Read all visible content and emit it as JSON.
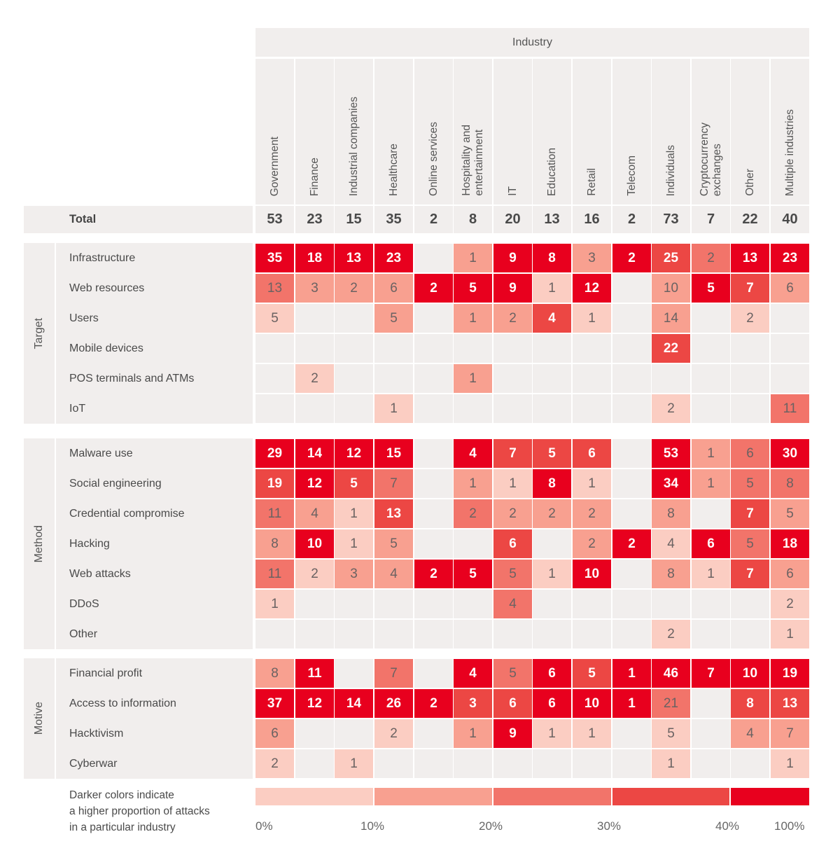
{
  "chart_data": {
    "type": "heatmap",
    "title": "Industry",
    "column_group_label": "Industry",
    "columns": [
      "Government",
      "Finance",
      "Industrial companies",
      "Healthcare",
      "Online services",
      "Hospitality and\nentertainment",
      "IT",
      "Education",
      "Retail",
      "Telecom",
      "Individuals",
      "Cryptocurrency\nexchanges",
      "Other",
      "Multiple industries"
    ],
    "totals_label": "Total",
    "totals": [
      53,
      23,
      15,
      35,
      2,
      8,
      20,
      13,
      16,
      2,
      73,
      7,
      22,
      40
    ],
    "groups": [
      {
        "name": "Target",
        "rows": [
          {
            "label": "Infrastructure",
            "values": [
              35,
              18,
              13,
              23,
              null,
              1,
              9,
              8,
              3,
              2,
              25,
              2,
              13,
              23
            ],
            "levels": [
              5,
              5,
              5,
              5,
              0,
              2,
              5,
              5,
              2,
              5,
              4,
              3,
              5,
              5
            ]
          },
          {
            "label": "Web resources",
            "values": [
              13,
              3,
              2,
              6,
              2,
              5,
              9,
              1,
              12,
              null,
              10,
              5,
              7,
              6
            ],
            "levels": [
              3,
              2,
              2,
              2,
              5,
              5,
              5,
              1,
              5,
              0,
              2,
              5,
              4,
              2
            ]
          },
          {
            "label": "Users",
            "values": [
              5,
              null,
              null,
              5,
              null,
              1,
              2,
              4,
              1,
              null,
              14,
              null,
              2,
              null
            ],
            "levels": [
              1,
              0,
              0,
              2,
              0,
              2,
              2,
              4,
              1,
              0,
              2,
              0,
              1,
              0
            ]
          },
          {
            "label": "Mobile devices",
            "values": [
              null,
              null,
              null,
              null,
              null,
              null,
              null,
              null,
              null,
              null,
              22,
              null,
              null,
              null
            ],
            "levels": [
              0,
              0,
              0,
              0,
              0,
              0,
              0,
              0,
              0,
              0,
              4,
              0,
              0,
              0
            ]
          },
          {
            "label": "POS terminals and ATMs",
            "values": [
              null,
              2,
              null,
              null,
              null,
              1,
              null,
              null,
              null,
              null,
              null,
              null,
              null,
              null
            ],
            "levels": [
              0,
              1,
              0,
              0,
              0,
              2,
              0,
              0,
              0,
              0,
              0,
              0,
              0,
              0
            ]
          },
          {
            "label": "IoT",
            "values": [
              null,
              null,
              null,
              1,
              null,
              null,
              null,
              null,
              null,
              null,
              2,
              null,
              null,
              11
            ],
            "levels": [
              0,
              0,
              0,
              1,
              0,
              0,
              0,
              0,
              0,
              0,
              1,
              0,
              0,
              3
            ]
          }
        ]
      },
      {
        "name": "Method",
        "rows": [
          {
            "label": "Malware use",
            "values": [
              29,
              14,
              12,
              15,
              null,
              4,
              7,
              5,
              6,
              null,
              53,
              1,
              6,
              30
            ],
            "levels": [
              5,
              5,
              5,
              5,
              0,
              5,
              4,
              4,
              4,
              0,
              5,
              2,
              3,
              5
            ]
          },
          {
            "label": "Social engineering",
            "values": [
              19,
              12,
              5,
              7,
              null,
              1,
              1,
              8,
              1,
              null,
              34,
              1,
              5,
              8
            ],
            "levels": [
              4,
              5,
              4,
              3,
              0,
              2,
              1,
              5,
              1,
              0,
              5,
              2,
              3,
              3
            ]
          },
          {
            "label": "Credential compromise",
            "values": [
              11,
              4,
              1,
              13,
              null,
              2,
              2,
              2,
              2,
              null,
              8,
              null,
              7,
              5
            ],
            "levels": [
              3,
              2,
              1,
              4,
              0,
              3,
              2,
              2,
              2,
              0,
              2,
              0,
              4,
              2
            ]
          },
          {
            "label": "Hacking",
            "values": [
              8,
              10,
              1,
              5,
              null,
              null,
              6,
              null,
              2,
              2,
              4,
              6,
              5,
              18
            ],
            "levels": [
              2,
              5,
              1,
              2,
              0,
              0,
              4,
              0,
              2,
              5,
              1,
              5,
              3,
              5
            ]
          },
          {
            "label": "Web attacks",
            "values": [
              11,
              2,
              3,
              4,
              2,
              5,
              5,
              1,
              10,
              null,
              8,
              1,
              7,
              6
            ],
            "levels": [
              3,
              1,
              2,
              2,
              5,
              5,
              3,
              1,
              5,
              0,
              2,
              1,
              4,
              2
            ]
          },
          {
            "label": "DDoS",
            "values": [
              1,
              null,
              null,
              null,
              null,
              null,
              4,
              null,
              null,
              null,
              null,
              null,
              null,
              2
            ],
            "levels": [
              1,
              0,
              0,
              0,
              0,
              0,
              3,
              0,
              0,
              0,
              0,
              0,
              0,
              1
            ]
          },
          {
            "label": "Other",
            "values": [
              null,
              null,
              null,
              null,
              null,
              null,
              null,
              null,
              null,
              null,
              2,
              null,
              null,
              1
            ],
            "levels": [
              0,
              0,
              0,
              0,
              0,
              0,
              0,
              0,
              0,
              0,
              1,
              0,
              0,
              1
            ]
          }
        ]
      },
      {
        "name": "Motive",
        "rows": [
          {
            "label": "Financial profit",
            "values": [
              8,
              11,
              null,
              7,
              null,
              4,
              5,
              6,
              5,
              1,
              46,
              7,
              10,
              19
            ],
            "levels": [
              2,
              5,
              0,
              3,
              0,
              5,
              3,
              5,
              4,
              5,
              5,
              5,
              5,
              5
            ]
          },
          {
            "label": "Access to information",
            "values": [
              37,
              12,
              14,
              26,
              2,
              3,
              6,
              6,
              10,
              1,
              21,
              null,
              8,
              13
            ],
            "levels": [
              5,
              5,
              5,
              5,
              5,
              4,
              4,
              5,
              5,
              5,
              3,
              0,
              4,
              4
            ]
          },
          {
            "label": "Hacktivism",
            "values": [
              6,
              null,
              null,
              2,
              null,
              1,
              9,
              1,
              1,
              null,
              5,
              null,
              4,
              7
            ],
            "levels": [
              2,
              0,
              0,
              1,
              0,
              2,
              5,
              1,
              1,
              0,
              1,
              0,
              2,
              2
            ]
          },
          {
            "label": "Cyberwar",
            "values": [
              2,
              null,
              1,
              null,
              null,
              null,
              null,
              null,
              null,
              null,
              1,
              null,
              null,
              1
            ],
            "levels": [
              1,
              0,
              1,
              0,
              0,
              0,
              0,
              0,
              0,
              0,
              1,
              0,
              0,
              1
            ]
          }
        ]
      }
    ],
    "legend": {
      "text": "Darker colors indicate\na higher proportion of attacks\nin a particular industry",
      "ticks": [
        "0%",
        "10%",
        "20%",
        "30%",
        "40%",
        "100%"
      ],
      "bins": [
        [
          0,
          10
        ],
        [
          10,
          20
        ],
        [
          20,
          30
        ],
        [
          30,
          40
        ],
        [
          40,
          100
        ]
      ],
      "unit": "%"
    },
    "colors": {
      "empty": "#f1eeed",
      "levels": [
        "#f1eeed",
        "#fbcdc2",
        "#f8a090",
        "#f2746a",
        "#ec4744",
        "#e8001e"
      ]
    }
  }
}
